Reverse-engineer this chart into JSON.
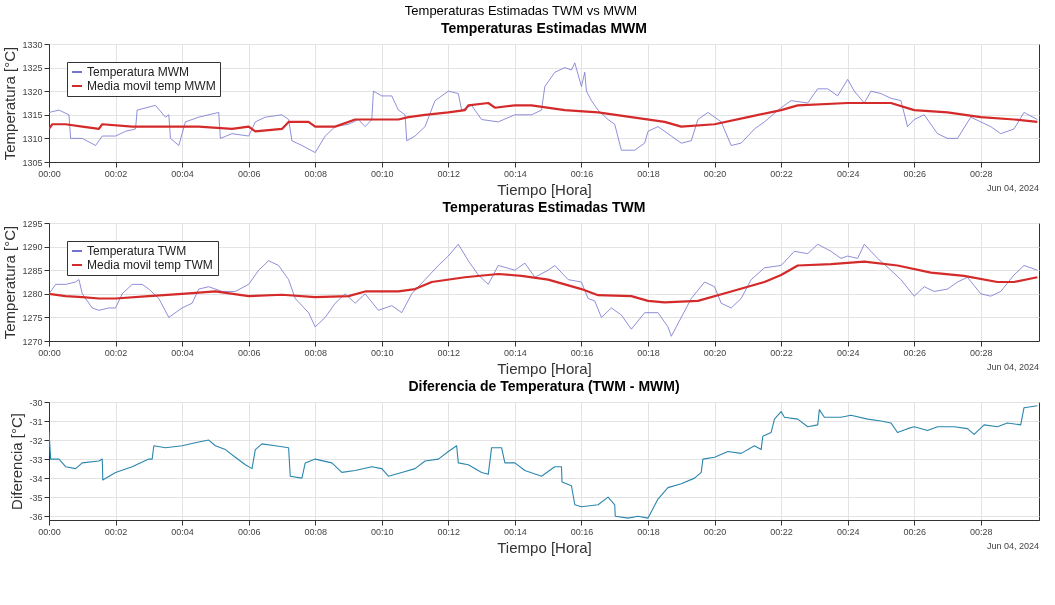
{
  "chart_data": [
    {
      "type": "line",
      "title": "Temperaturas Estimadas MWM",
      "xlabel": "Tiempo [Hora]",
      "ylabel": "Temperatura [°C]",
      "annotations": [
        "Temperaturas Estimadas TWM vs MWM",
        "Jun 04, 2024"
      ],
      "grid": true,
      "legend": "top left",
      "xlim": [
        "2024-06-04T00:00:00",
        "2024-06-04T00:29:45"
      ],
      "xticks": [
        {
          "value": "2024-06-04T00:00",
          "label": "00:00"
        },
        {
          "value": "2024-06-04T00:02",
          "label": "00:02"
        },
        {
          "value": "2024-06-04T00:04",
          "label": "00:04"
        },
        {
          "value": "2024-06-04T00:06",
          "label": "00:06"
        },
        {
          "value": "2024-06-04T00:08",
          "label": "00:08"
        },
        {
          "value": "2024-06-04T00:10",
          "label": "00:10"
        },
        {
          "value": "2024-06-04T00:12",
          "label": "00:12"
        },
        {
          "value": "2024-06-04T00:14",
          "label": "00:14"
        },
        {
          "value": "2024-06-04T00:16",
          "label": "00:16"
        },
        {
          "value": "2024-06-04T00:18",
          "label": "00:18"
        },
        {
          "value": "2024-06-04T00:20",
          "label": "00:20"
        },
        {
          "value": "2024-06-04T00:22",
          "label": "00:22"
        },
        {
          "value": "2024-06-04T00:24",
          "label": "00:24"
        },
        {
          "value": "2024-06-04T00:26",
          "label": "00:26"
        },
        {
          "value": "2024-06-04T00:28",
          "label": "00:28"
        }
      ],
      "ylim": [
        1305,
        1330
      ],
      "yticks": [
        1305,
        1310,
        1315,
        1320,
        1325,
        1330
      ],
      "series": [
        {
          "name": "Temperatura MWM",
          "color": "#7272d0",
          "x": [
            "2024-06-04T00:00:00",
            "2024-06-04T00:00:18",
            "2024-06-04T00:00:36",
            "2024-06-04T00:00:39",
            "2024-06-04T00:01:00",
            "2024-06-04T00:01:24",
            "2024-06-04T00:01:36",
            "2024-06-04T00:02:00",
            "2024-06-04T00:02:18",
            "2024-06-04T00:02:36",
            "2024-06-04T00:02:39",
            "2024-06-04T00:03:12",
            "2024-06-04T00:03:30",
            "2024-06-04T00:03:36",
            "2024-06-04T00:03:39",
            "2024-06-04T00:03:54",
            "2024-06-04T00:04:06",
            "2024-06-04T00:04:30",
            "2024-06-04T00:05:06",
            "2024-06-04T00:05:09",
            "2024-06-04T00:05:30",
            "2024-06-04T00:06:00",
            "2024-06-04T00:06:12",
            "2024-06-04T00:06:30",
            "2024-06-04T00:07:00",
            "2024-06-04T00:07:12",
            "2024-06-04T00:07:18",
            "2024-06-04T00:07:36",
            "2024-06-04T00:08:00",
            "2024-06-04T00:08:18",
            "2024-06-04T00:08:36",
            "2024-06-04T00:09:00",
            "2024-06-04T00:09:18",
            "2024-06-04T00:09:30",
            "2024-06-04T00:09:42",
            "2024-06-04T00:09:45",
            "2024-06-04T00:10:00",
            "2024-06-04T00:10:18",
            "2024-06-04T00:10:30",
            "2024-06-04T00:10:42",
            "2024-06-04T00:10:45",
            "2024-06-04T00:11:00",
            "2024-06-04T00:11:18",
            "2024-06-04T00:11:36",
            "2024-06-04T00:12:00",
            "2024-06-04T00:12:18",
            "2024-06-04T00:12:24",
            "2024-06-04T00:12:42",
            "2024-06-04T00:13:00",
            "2024-06-04T00:13:30",
            "2024-06-04T00:14:00",
            "2024-06-04T00:14:30",
            "2024-06-04T00:14:48",
            "2024-06-04T00:14:54",
            "2024-06-04T00:15:12",
            "2024-06-04T00:15:30",
            "2024-06-04T00:15:42",
            "2024-06-04T00:15:48",
            "2024-06-04T00:16:00",
            "2024-06-04T00:16:06",
            "2024-06-04T00:16:09",
            "2024-06-04T00:16:18",
            "2024-06-04T00:16:30",
            "2024-06-04T00:16:48",
            "2024-06-04T00:17:00",
            "2024-06-04T00:17:12",
            "2024-06-04T00:17:36",
            "2024-06-04T00:17:54",
            "2024-06-04T00:18:00",
            "2024-06-04T00:18:18",
            "2024-06-04T00:18:36",
            "2024-06-04T00:19:00",
            "2024-06-04T00:19:18",
            "2024-06-04T00:19:30",
            "2024-06-04T00:19:48",
            "2024-06-04T00:20:12",
            "2024-06-04T00:20:30",
            "2024-06-04T00:20:48",
            "2024-06-04T00:21:12",
            "2024-06-04T00:21:30",
            "2024-06-04T00:22:00",
            "2024-06-04T00:22:18",
            "2024-06-04T00:22:48",
            "2024-06-04T00:23:06",
            "2024-06-04T00:23:24",
            "2024-06-04T00:23:42",
            "2024-06-04T00:24:00",
            "2024-06-04T00:24:12",
            "2024-06-04T00:24:30",
            "2024-06-04T00:24:42",
            "2024-06-04T00:25:00",
            "2024-06-04T00:25:18",
            "2024-06-04T00:25:36",
            "2024-06-04T00:25:48",
            "2024-06-04T00:26:00",
            "2024-06-04T00:26:18",
            "2024-06-04T00:26:42",
            "2024-06-04T00:27:00",
            "2024-06-04T00:27:18",
            "2024-06-04T00:27:42",
            "2024-06-04T00:28:00",
            "2024-06-04T00:28:18",
            "2024-06-04T00:28:36",
            "2024-06-04T00:29:00",
            "2024-06-04T00:29:18",
            "2024-06-04T00:29:42"
          ],
          "values": [
            1315.5,
            1316,
            1315,
            1310,
            1310,
            1308.5,
            1310.5,
            1310.5,
            1311.5,
            1312,
            1316,
            1317,
            1314.5,
            1315,
            1310,
            1308.5,
            1313.5,
            1314.5,
            1315.5,
            1310,
            1311,
            1310.5,
            1313.5,
            1314.5,
            1315,
            1314,
            1309.5,
            1308.5,
            1307,
            1310.5,
            1312.5,
            1313,
            1314,
            1312.5,
            1314,
            1320,
            1319,
            1319,
            1316,
            1315,
            1309.5,
            1310.5,
            1312.5,
            1318,
            1320,
            1319.5,
            1316,
            1317,
            1314,
            1313.5,
            1315,
            1315,
            1316,
            1321,
            1324,
            1325,
            1324.5,
            1326,
            1321,
            1324,
            1320,
            1318,
            1316,
            1314,
            1313,
            1307.5,
            1307.5,
            1309,
            1311.5,
            1312.5,
            1311,
            1309,
            1309.5,
            1314,
            1315.5,
            1313.5,
            1308.5,
            1309,
            1312,
            1313.5,
            1316.5,
            1318,
            1317.5,
            1320.5,
            1320.5,
            1319,
            1322.5,
            1320,
            1317.5,
            1320,
            1319.5,
            1318.5,
            1318,
            1312.5,
            1314,
            1315,
            1311,
            1310,
            1310,
            1314.5,
            1313.5,
            1312.5,
            1311,
            1312,
            1315.5,
            1314
          ]
        },
        {
          "name": "Media movil temp MWM",
          "color": "#d42a2a",
          "x": [
            "2024-06-04T00:00:00",
            "2024-06-04T00:00:06",
            "2024-06-04T00:00:30",
            "2024-06-04T00:01:00",
            "2024-06-04T00:01:30",
            "2024-06-04T00:01:36",
            "2024-06-04T00:02:30",
            "2024-06-04T00:03:30",
            "2024-06-04T00:04:30",
            "2024-06-04T00:05:30",
            "2024-06-04T00:06:00",
            "2024-06-04T00:06:12",
            "2024-06-04T00:07:00",
            "2024-06-04T00:07:12",
            "2024-06-04T00:07:48",
            "2024-06-04T00:08:00",
            "2024-06-04T00:08:36",
            "2024-06-04T00:09:12",
            "2024-06-04T00:10:30",
            "2024-06-04T00:10:48",
            "2024-06-04T00:11:18",
            "2024-06-04T00:12:00",
            "2024-06-04T00:12:30",
            "2024-06-04T00:12:36",
            "2024-06-04T00:13:12",
            "2024-06-04T00:13:24",
            "2024-06-04T00:14:00",
            "2024-06-04T00:14:30",
            "2024-06-04T00:15:30",
            "2024-06-04T00:16:30",
            "2024-06-04T00:17:30",
            "2024-06-04T00:18:30",
            "2024-06-04T00:19:00",
            "2024-06-04T00:20:00",
            "2024-06-04T00:21:00",
            "2024-06-04T00:22:00",
            "2024-06-04T00:22:30",
            "2024-06-04T00:24:00",
            "2024-06-04T00:25:18",
            "2024-06-04T00:26:00",
            "2024-06-04T00:27:00",
            "2024-06-04T00:28:00",
            "2024-06-04T00:29:00",
            "2024-06-04T00:29:42"
          ],
          "values": [
            1312,
            1313,
            1313,
            1312.5,
            1312,
            1313,
            1312.5,
            1312.5,
            1312.5,
            1312,
            1312.5,
            1311.5,
            1312,
            1313.5,
            1313.5,
            1312.5,
            1312.5,
            1314,
            1314,
            1314.5,
            1315,
            1315.5,
            1316,
            1317,
            1317.5,
            1316.5,
            1317,
            1317,
            1316,
            1315.5,
            1314.5,
            1313.5,
            1312.5,
            1313,
            1314.5,
            1316,
            1317,
            1317.5,
            1317.5,
            1316,
            1315.5,
            1314.5,
            1314,
            1313.5
          ]
        }
      ]
    },
    {
      "type": "line",
      "title": "Temperaturas Estimadas TWM",
      "xlabel": "Tiempo [Hora]",
      "ylabel": "Temperatura [°C]",
      "annotations": [
        "Jun 04, 2024"
      ],
      "grid": true,
      "legend": "top left",
      "xlim": [
        "2024-06-04T00:00:00",
        "2024-06-04T00:29:45"
      ],
      "xticks": [
        {
          "value": "2024-06-04T00:00",
          "label": "00:00"
        },
        {
          "value": "2024-06-04T00:02",
          "label": "00:02"
        },
        {
          "value": "2024-06-04T00:04",
          "label": "00:04"
        },
        {
          "value": "2024-06-04T00:06",
          "label": "00:06"
        },
        {
          "value": "2024-06-04T00:08",
          "label": "00:08"
        },
        {
          "value": "2024-06-04T00:10",
          "label": "00:10"
        },
        {
          "value": "2024-06-04T00:12",
          "label": "00:12"
        },
        {
          "value": "2024-06-04T00:14",
          "label": "00:14"
        },
        {
          "value": "2024-06-04T00:16",
          "label": "00:16"
        },
        {
          "value": "2024-06-04T00:18",
          "label": "00:18"
        },
        {
          "value": "2024-06-04T00:20",
          "label": "00:20"
        },
        {
          "value": "2024-06-04T00:22",
          "label": "00:22"
        },
        {
          "value": "2024-06-04T00:24",
          "label": "00:24"
        },
        {
          "value": "2024-06-04T00:26",
          "label": "00:26"
        },
        {
          "value": "2024-06-04T00:28",
          "label": "00:28"
        }
      ],
      "ylim": [
        1270,
        1295
      ],
      "yticks": [
        1270,
        1275,
        1280,
        1285,
        1290,
        1295
      ],
      "series": [
        {
          "name": "Temperatura TWM",
          "color": "#7272d0",
          "x": [
            "2024-06-04T00:00:00",
            "2024-06-04T00:00:12",
            "2024-06-04T00:00:30",
            "2024-06-04T00:00:48",
            "2024-06-04T00:00:54",
            "2024-06-04T00:01:00",
            "2024-06-04T00:01:18",
            "2024-06-04T00:01:30",
            "2024-06-04T00:01:48",
            "2024-06-04T00:02:00",
            "2024-06-04T00:02:12",
            "2024-06-04T00:02:30",
            "2024-06-04T00:02:48",
            "2024-06-04T00:03:00",
            "2024-06-04T00:03:18",
            "2024-06-04T00:03:36",
            "2024-06-04T00:04:00",
            "2024-06-04T00:04:18",
            "2024-06-04T00:04:30",
            "2024-06-04T00:04:48",
            "2024-06-04T00:05:12",
            "2024-06-04T00:05:36",
            "2024-06-04T00:06:00",
            "2024-06-04T00:06:18",
            "2024-06-04T00:06:36",
            "2024-06-04T00:06:54",
            "2024-06-04T00:07:12",
            "2024-06-04T00:07:24",
            "2024-06-04T00:07:48",
            "2024-06-04T00:08:00",
            "2024-06-04T00:08:18",
            "2024-06-04T00:08:36",
            "2024-06-04T00:08:54",
            "2024-06-04T00:09:12",
            "2024-06-04T00:09:30",
            "2024-06-04T00:09:54",
            "2024-06-04T00:10:18",
            "2024-06-04T00:10:36",
            "2024-06-04T00:10:54",
            "2024-06-04T00:11:18",
            "2024-06-04T00:11:42",
            "2024-06-04T00:12:00",
            "2024-06-04T00:12:18",
            "2024-06-04T00:12:36",
            "2024-06-04T00:12:54",
            "2024-06-04T00:13:12",
            "2024-06-04T00:13:30",
            "2024-06-04T00:14:00",
            "2024-06-04T00:14:18",
            "2024-06-04T00:14:36",
            "2024-06-04T00:15:00",
            "2024-06-04T00:15:12",
            "2024-06-04T00:15:36",
            "2024-06-04T00:16:00",
            "2024-06-04T00:16:12",
            "2024-06-04T00:16:24",
            "2024-06-04T00:16:36",
            "2024-06-04T00:16:54",
            "2024-06-04T00:17:12",
            "2024-06-04T00:17:30",
            "2024-06-04T00:17:54",
            "2024-06-04T00:18:18",
            "2024-06-04T00:18:36",
            "2024-06-04T00:18:42",
            "2024-06-04T00:19:00",
            "2024-06-04T00:19:18",
            "2024-06-04T00:19:42",
            "2024-06-04T00:20:00",
            "2024-06-04T00:20:12",
            "2024-06-04T00:20:30",
            "2024-06-04T00:20:48",
            "2024-06-04T00:21:06",
            "2024-06-04T00:21:30",
            "2024-06-04T00:22:00",
            "2024-06-04T00:22:24",
            "2024-06-04T00:22:48",
            "2024-06-04T00:23:06",
            "2024-06-04T00:23:30",
            "2024-06-04T00:23:48",
            "2024-06-04T00:24:00",
            "2024-06-04T00:24:18",
            "2024-06-04T00:24:30",
            "2024-06-04T00:24:54",
            "2024-06-04T00:25:18",
            "2024-06-04T00:25:36",
            "2024-06-04T00:26:00",
            "2024-06-04T00:26:18",
            "2024-06-04T00:26:36",
            "2024-06-04T00:27:00",
            "2024-06-04T00:27:18",
            "2024-06-04T00:27:36",
            "2024-06-04T00:28:00",
            "2024-06-04T00:28:18",
            "2024-06-04T00:28:36",
            "2024-06-04T00:29:00",
            "2024-06-04T00:29:18",
            "2024-06-04T00:29:42"
          ],
          "values": [
            1280,
            1282,
            1282,
            1282.5,
            1283,
            1280,
            1277,
            1276.5,
            1277,
            1277,
            1280,
            1282,
            1282,
            1281,
            1279,
            1275,
            1277,
            1278,
            1281,
            1281.5,
            1280.5,
            1280.5,
            1282,
            1285,
            1287,
            1286,
            1283,
            1279,
            1276,
            1273,
            1275,
            1278,
            1280,
            1278,
            1280,
            1276.5,
            1277.5,
            1276,
            1280,
            1283,
            1286,
            1288,
            1290.5,
            1287,
            1284,
            1282,
            1286,
            1285,
            1286.5,
            1283.5,
            1285,
            1286,
            1283,
            1282.5,
            1279,
            1278.5,
            1275,
            1277,
            1275.5,
            1272.5,
            1276,
            1276,
            1273,
            1271,
            1275,
            1279,
            1282.5,
            1281.5,
            1278,
            1277,
            1279,
            1283,
            1285.5,
            1286,
            1289,
            1288.5,
            1290.5,
            1289,
            1287.5,
            1288,
            1287.5,
            1290.5,
            1287.5,
            1285,
            1283,
            1279.5,
            1281.5,
            1280.5,
            1281,
            1282.5,
            1283.5,
            1280,
            1279.5,
            1280.5,
            1284,
            1286,
            1285
          ]
        },
        {
          "name": "Media movil temp TWM",
          "color": "#d42a2a",
          "x": [
            "2024-06-04T00:00:00",
            "2024-06-04T00:00:30",
            "2024-06-04T00:01:00",
            "2024-06-04T00:01:30",
            "2024-06-04T00:02:00",
            "2024-06-04T00:03:00",
            "2024-06-04T00:04:00",
            "2024-06-04T00:05:00",
            "2024-06-04T00:06:00",
            "2024-06-04T00:07:00",
            "2024-06-04T00:08:00",
            "2024-06-04T00:09:00",
            "2024-06-04T00:09:30",
            "2024-06-04T00:10:30",
            "2024-06-04T00:11:00",
            "2024-06-04T00:11:30",
            "2024-06-04T00:12:30",
            "2024-06-04T00:13:30",
            "2024-06-04T00:14:12",
            "2024-06-04T00:15:00",
            "2024-06-04T00:16:00",
            "2024-06-04T00:16:30",
            "2024-06-04T00:17:30",
            "2024-06-04T00:18:00",
            "2024-06-04T00:18:30",
            "2024-06-04T00:19:30",
            "2024-06-04T00:20:30",
            "2024-06-04T00:21:30",
            "2024-06-04T00:22:00",
            "2024-06-04T00:22:30",
            "2024-06-04T00:23:30",
            "2024-06-04T00:24:30",
            "2024-06-04T00:25:30",
            "2024-06-04T00:26:30",
            "2024-06-04T00:27:30",
            "2024-06-04T00:28:30",
            "2024-06-04T00:29:00",
            "2024-06-04T00:29:42"
          ],
          "values": [
            1280,
            1279.5,
            1279.3,
            1279,
            1279,
            1279.5,
            1280,
            1280.5,
            1279.5,
            1279.8,
            1279.3,
            1279.5,
            1280.5,
            1280.5,
            1281,
            1282.5,
            1283.5,
            1284.2,
            1283.8,
            1283,
            1281,
            1279.7,
            1279.5,
            1278.5,
            1278.2,
            1278.5,
            1280.5,
            1282.5,
            1284,
            1286,
            1286.3,
            1286.8,
            1286,
            1284.5,
            1283.8,
            1282.5,
            1282.5,
            1283.5
          ]
        }
      ]
    },
    {
      "type": "line",
      "title": "Diferencia de Temperatura (TWM - MWM)",
      "xlabel": "Tiempo [Hora]",
      "ylabel": "Diferencia [°C]",
      "annotations": [
        "Jun 04, 2024"
      ],
      "grid": true,
      "xlim": [
        "2024-06-04T00:00:00",
        "2024-06-04T00:29:45"
      ],
      "xticks": [
        {
          "value": "2024-06-04T00:00",
          "label": "00:00"
        },
        {
          "value": "2024-06-04T00:02",
          "label": "00:02"
        },
        {
          "value": "2024-06-04T00:04",
          "label": "00:04"
        },
        {
          "value": "2024-06-04T00:06",
          "label": "00:06"
        },
        {
          "value": "2024-06-04T00:08",
          "label": "00:08"
        },
        {
          "value": "2024-06-04T00:10",
          "label": "00:10"
        },
        {
          "value": "2024-06-04T00:12",
          "label": "00:12"
        },
        {
          "value": "2024-06-04T00:14",
          "label": "00:14"
        },
        {
          "value": "2024-06-04T00:16",
          "label": "00:16"
        },
        {
          "value": "2024-06-04T00:18",
          "label": "00:18"
        },
        {
          "value": "2024-06-04T00:20",
          "label": "00:20"
        },
        {
          "value": "2024-06-04T00:22",
          "label": "00:22"
        },
        {
          "value": "2024-06-04T00:24",
          "label": "00:24"
        },
        {
          "value": "2024-06-04T00:26",
          "label": "00:26"
        },
        {
          "value": "2024-06-04T00:28",
          "label": "00:28"
        }
      ],
      "ylim": [
        -36.2,
        -30
      ],
      "yticks": [
        -36,
        -35,
        -34,
        -33,
        -32,
        -31,
        -30
      ],
      "series": [
        {
          "color": "#2b86ad",
          "x": [
            "2024-06-04T00:00:00",
            "2024-06-04T00:00:03",
            "2024-06-04T00:00:18",
            "2024-06-04T00:00:30",
            "2024-06-04T00:00:48",
            "2024-06-04T00:01:00",
            "2024-06-04T00:01:30",
            "2024-06-04T00:01:36",
            "2024-06-04T00:01:37",
            "2024-06-04T00:02:00",
            "2024-06-04T00:02:30",
            "2024-06-04T00:03:00",
            "2024-06-04T00:03:06",
            "2024-06-04T00:03:09",
            "2024-06-04T00:03:30",
            "2024-06-04T00:04:00",
            "2024-06-04T00:04:30",
            "2024-06-04T00:04:48",
            "2024-06-04T00:05:00",
            "2024-06-04T00:05:18",
            "2024-06-04T00:05:36",
            "2024-06-04T00:05:54",
            "2024-06-04T00:06:06",
            "2024-06-04T00:06:12",
            "2024-06-04T00:06:24",
            "2024-06-04T00:06:48",
            "2024-06-04T00:07:12",
            "2024-06-04T00:07:15",
            "2024-06-04T00:07:36",
            "2024-06-04T00:07:42",
            "2024-06-04T00:08:00",
            "2024-06-04T00:08:30",
            "2024-06-04T00:08:48",
            "2024-06-04T00:09:12",
            "2024-06-04T00:09:42",
            "2024-06-04T00:10:00",
            "2024-06-04T00:10:12",
            "2024-06-04T00:10:36",
            "2024-06-04T00:11:00",
            "2024-06-04T00:11:18",
            "2024-06-04T00:11:42",
            "2024-06-04T00:12:00",
            "2024-06-04T00:12:15",
            "2024-06-04T00:12:18",
            "2024-06-04T00:12:36",
            "2024-06-04T00:13:00",
            "2024-06-04T00:13:12",
            "2024-06-04T00:13:18",
            "2024-06-04T00:13:36",
            "2024-06-04T00:13:42",
            "2024-06-04T00:14:00",
            "2024-06-04T00:14:18",
            "2024-06-04T00:14:48",
            "2024-06-04T00:15:12",
            "2024-06-04T00:15:24",
            "2024-06-04T00:15:25",
            "2024-06-04T00:15:42",
            "2024-06-04T00:15:48",
            "2024-06-04T00:16:00",
            "2024-06-04T00:16:30",
            "2024-06-04T00:16:48",
            "2024-06-04T00:17:00",
            "2024-06-04T00:17:01",
            "2024-06-04T00:17:24",
            "2024-06-04T00:17:42",
            "2024-06-04T00:18:00",
            "2024-06-04T00:18:18",
            "2024-06-04T00:18:36",
            "2024-06-04T00:19:00",
            "2024-06-04T00:19:24",
            "2024-06-04T00:19:36",
            "2024-06-04T00:19:39",
            "2024-06-04T00:20:00",
            "2024-06-04T00:20:24",
            "2024-06-04T00:20:48",
            "2024-06-04T00:21:12",
            "2024-06-04T00:21:24",
            "2024-06-04T00:21:27",
            "2024-06-04T00:21:42",
            "2024-06-04T00:21:48",
            "2024-06-04T00:22:00",
            "2024-06-04T00:22:06",
            "2024-06-04T00:22:30",
            "2024-06-04T00:22:48",
            "2024-06-04T00:23:06",
            "2024-06-04T00:23:09",
            "2024-06-04T00:23:18",
            "2024-06-04T00:23:48",
            "2024-06-04T00:24:06",
            "2024-06-04T00:24:36",
            "2024-06-04T00:25:00",
            "2024-06-04T00:25:18",
            "2024-06-04T00:25:30",
            "2024-06-04T00:25:48",
            "2024-06-04T00:26:00",
            "2024-06-04T00:26:24",
            "2024-06-04T00:26:42",
            "2024-06-04T00:27:12",
            "2024-06-04T00:27:36",
            "2024-06-04T00:27:48",
            "2024-06-04T00:28:06",
            "2024-06-04T00:28:30",
            "2024-06-04T00:28:48",
            "2024-06-04T00:29:12",
            "2024-06-04T00:29:18",
            "2024-06-04T00:29:42"
          ],
          "values": [
            -31.5,
            -33,
            -33,
            -33.4,
            -33.5,
            -33.2,
            -33.1,
            -33,
            -34.1,
            -33.7,
            -33.4,
            -33,
            -33,
            -32.3,
            -32.4,
            -32.3,
            -32.1,
            -32,
            -32.3,
            -32.5,
            -32.9,
            -33.3,
            -33.5,
            -32.5,
            -32.2,
            -32.3,
            -32.4,
            -33.9,
            -34,
            -33.2,
            -33,
            -33.2,
            -33.7,
            -33.6,
            -33.4,
            -33.5,
            -33.9,
            -33.7,
            -33.5,
            -33.1,
            -33,
            -32.6,
            -32.3,
            -33.2,
            -33.3,
            -33.7,
            -33.8,
            -32.4,
            -32.4,
            -33.2,
            -33.2,
            -33.6,
            -33.9,
            -33.4,
            -33.4,
            -34.2,
            -34.4,
            -35.4,
            -35.5,
            -35.4,
            -35,
            -35.4,
            -36,
            -36.1,
            -36,
            -36.1,
            -35.1,
            -34.5,
            -34.3,
            -34,
            -33.7,
            -33,
            -32.9,
            -32.6,
            -32.7,
            -32.3,
            -32.5,
            -31.8,
            -31.6,
            -30.9,
            -30.5,
            -30.8,
            -30.9,
            -31.3,
            -31.2,
            -30.4,
            -30.8,
            -30.8,
            -30.7,
            -30.9,
            -31,
            -31.1,
            -31.6,
            -31.4,
            -31.3,
            -31.5,
            -31.3,
            -31.3,
            -31.4,
            -31.7,
            -31.2,
            -31.3,
            -31.1,
            -31.2,
            -30.3,
            -30.2
          ]
        }
      ]
    }
  ]
}
